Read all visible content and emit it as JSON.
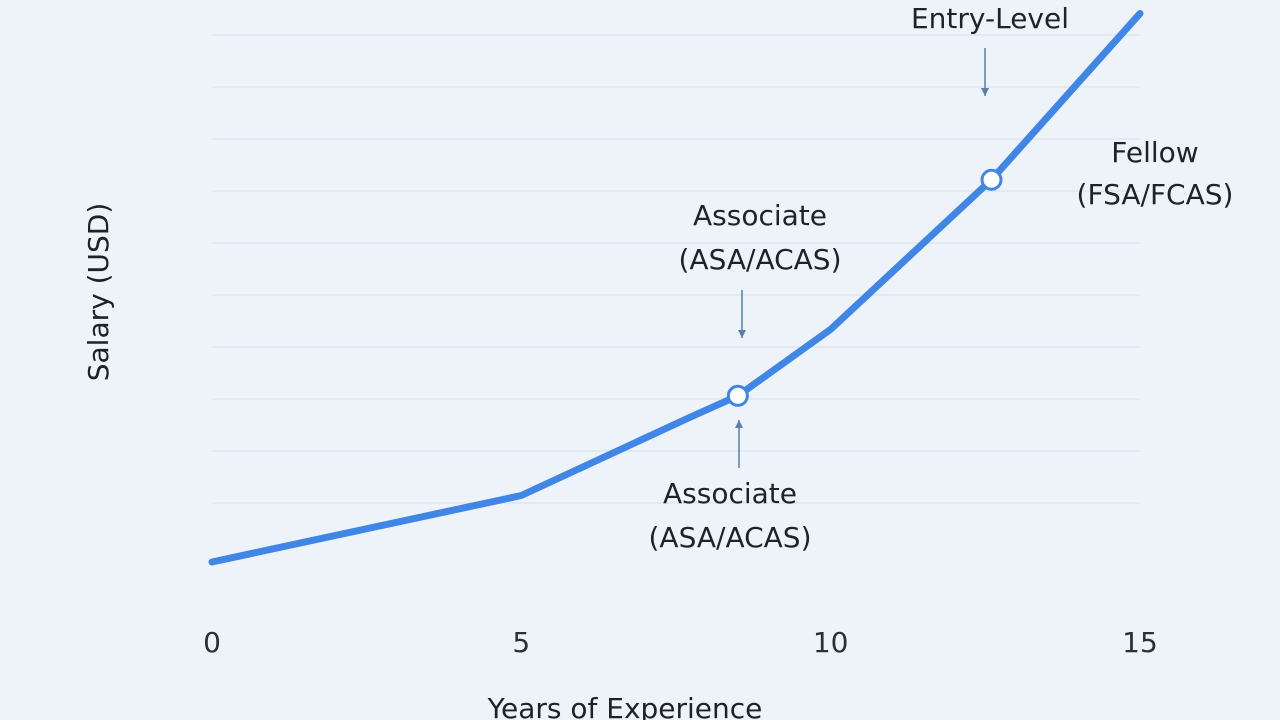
{
  "chart_data": {
    "type": "line",
    "title": "",
    "xlabel": "Years of Experience",
    "ylabel": "Salary (USD)",
    "xlim": [
      0,
      15
    ],
    "ylim": [
      0,
      100
    ],
    "x_ticks": [
      "0",
      "5",
      "10",
      "15"
    ],
    "y_ticks": [],
    "grid": "horizontal",
    "line_color": "#3f86e6",
    "marker_fill": "#ffffff",
    "series": [
      {
        "x": [
          0,
          5,
          7.7,
          8.5,
          10,
          12.6,
          15
        ],
        "y": [
          0,
          12,
          26,
          30,
          42,
          69,
          99
        ]
      }
    ],
    "markers": [
      {
        "x": 8.5,
        "y": 30
      },
      {
        "x": 12.6,
        "y": 69
      }
    ],
    "annotations": [
      {
        "id": "entry-level",
        "lines": [
          "Entry-Level"
        ],
        "x": 12.5,
        "y": 83
      },
      {
        "id": "fellow",
        "lines": [
          "Fellow",
          "(FSA/FCAS)"
        ],
        "x": 14,
        "y": 69
      },
      {
        "id": "associate-upper",
        "lines": [
          "Associate",
          "(ASA/ACAS)"
        ],
        "x": 8.5,
        "y": 41
      },
      {
        "id": "associate-lower",
        "lines": [
          "Associate",
          "(ASA/ACAS)"
        ],
        "x": 8.5,
        "y": 18
      }
    ]
  }
}
